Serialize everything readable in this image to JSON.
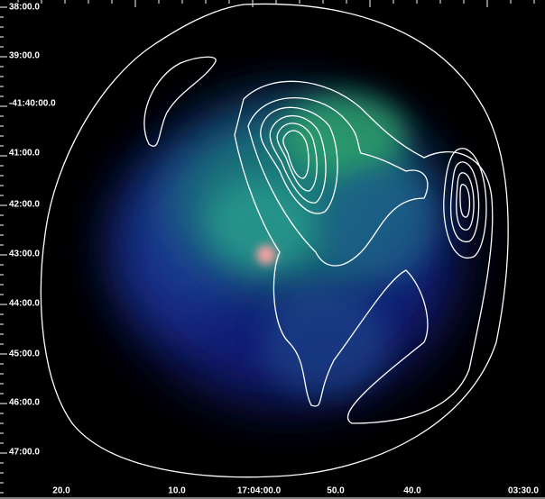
{
  "y_axis_labels": [
    "38:00.0",
    "39:00.0",
    "-41:40:00.0",
    "41:00.0",
    "42:00.0",
    "43:00.0",
    "44:00.0",
    "45:00.0",
    "46:00.0",
    "47:00.0"
  ],
  "x_axis_labels": [
    "20.0",
    "10.0",
    "17:04:00.0",
    "50.0",
    "40.0",
    "03:30.0"
  ]
}
